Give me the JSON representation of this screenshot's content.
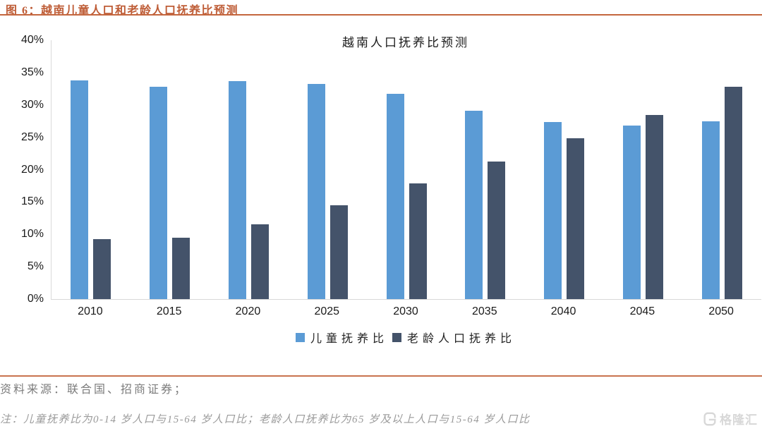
{
  "figure": {
    "header": "图 6：越南儿童人口和老龄人口抚养比预测",
    "source_line": "资料来源：联合国、招商证券；",
    "note_line": "注：儿童抚养比为0-14 岁人口与15-64 岁人口比；老龄人口抚养比为65 岁及以上人口与15-64 岁人口比",
    "watermark_text": "格隆汇"
  },
  "colors": {
    "accent_header": "#BE5C36",
    "rule": "#C4663E",
    "series_child_blue": "#5B9BD5",
    "series_elderly_navy": "#44536A",
    "axis_line": "#D9D9D9"
  },
  "chart_data": {
    "type": "bar",
    "title": "越南人口抚养比预测",
    "categories": [
      "2010",
      "2015",
      "2020",
      "2025",
      "2030",
      "2035",
      "2040",
      "2045",
      "2050"
    ],
    "series": [
      {
        "name": "儿童抚养比",
        "color": "#5B9BD5",
        "values": [
          33.8,
          32.8,
          33.7,
          33.2,
          31.7,
          29.1,
          27.4,
          26.8,
          27.5
        ]
      },
      {
        "name": "老龄人口抚养比",
        "color": "#44536A",
        "values": [
          9.3,
          9.5,
          11.5,
          14.5,
          17.9,
          21.2,
          24.8,
          28.5,
          32.8
        ]
      }
    ],
    "ylim": [
      0,
      40
    ],
    "ytick_labels_top_to_bottom": [
      "40%",
      "35%",
      "30%",
      "25%",
      "20%",
      "15%",
      "10%",
      "5%",
      "0%"
    ],
    "xlabel": "",
    "ylabel": "",
    "grid": false,
    "legend_position": "bottom"
  }
}
